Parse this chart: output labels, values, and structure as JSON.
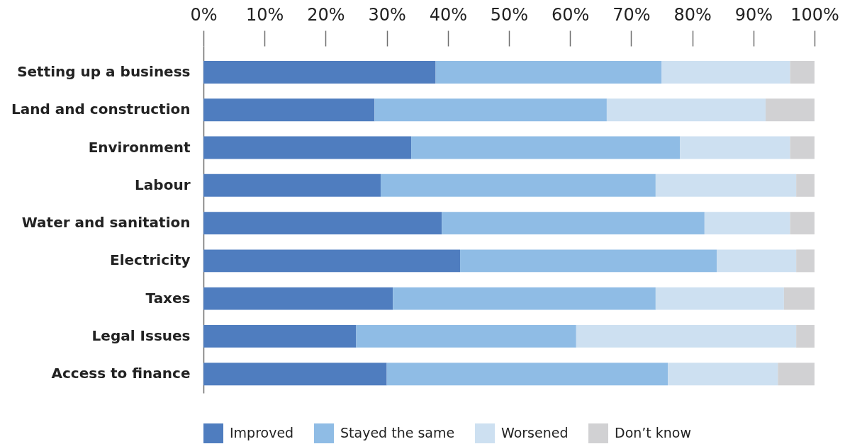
{
  "chart_data": {
    "type": "bar",
    "orientation": "horizontal",
    "stacked": true,
    "categories": [
      "Setting up a business",
      "Land and construction",
      "Environment",
      "Labour",
      "Water and sanitation",
      "Electricity",
      "Taxes",
      "Legal Issues",
      "Access to finance"
    ],
    "series": [
      {
        "name": "Improved",
        "color": "#4f7dbf",
        "values": [
          38,
          28,
          34,
          29,
          39,
          42,
          31,
          25,
          30
        ]
      },
      {
        "name": "Stayed the same",
        "color": "#8fbce5",
        "values": [
          37,
          38,
          44,
          45,
          43,
          42,
          43,
          36,
          46
        ]
      },
      {
        "name": "Worsened",
        "color": "#cde0f1",
        "values": [
          21,
          26,
          18,
          23,
          14,
          13,
          21,
          36,
          18
        ]
      },
      {
        "name": "Don’t know",
        "color": "#d1d1d3",
        "values": [
          4,
          8,
          4,
          3,
          4,
          3,
          5,
          3,
          6
        ]
      }
    ],
    "xlim": [
      0,
      100
    ],
    "xticks": [
      {
        "value": 0,
        "label": "0%"
      },
      {
        "value": 10,
        "label": "10%"
      },
      {
        "value": 20,
        "label": "20%"
      },
      {
        "value": 30,
        "label": "30%"
      },
      {
        "value": 40,
        "label": "40%"
      },
      {
        "value": 50,
        "label": "50%"
      },
      {
        "value": 60,
        "label": "60%"
      },
      {
        "value": 70,
        "label": "70%"
      },
      {
        "value": 80,
        "label": "80%"
      },
      {
        "value": 90,
        "label": "90%"
      },
      {
        "value": 100,
        "label": "100%"
      }
    ],
    "grid": false,
    "legend": "bottom"
  }
}
